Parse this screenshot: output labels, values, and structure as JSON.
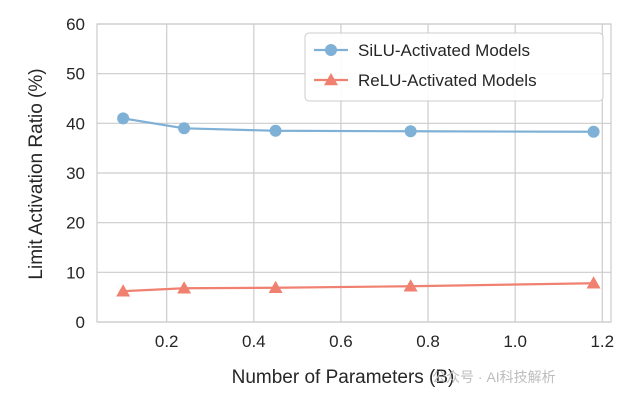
{
  "chart_data": {
    "type": "line",
    "title": "",
    "xlabel": "Number of Parameters (B)",
    "ylabel": "Limit Activation Ratio (%)",
    "xlim": [
      0.04,
      1.22
    ],
    "ylim": [
      0,
      60
    ],
    "xticks": [
      0.2,
      0.4,
      0.6,
      0.8,
      1.0,
      1.2
    ],
    "xtick_labels": [
      "0.2",
      "0.4",
      "0.6",
      "0.8",
      "1.0",
      "1.2"
    ],
    "yticks": [
      0,
      10,
      20,
      30,
      40,
      50,
      60
    ],
    "ytick_labels": [
      "0",
      "10",
      "20",
      "30",
      "40",
      "50",
      "60"
    ],
    "grid": true,
    "legend_position": "top-right",
    "series": [
      {
        "name": "SiLU-Activated Models",
        "color": "#7fb0d5",
        "marker": "circle",
        "x": [
          0.1,
          0.24,
          0.45,
          0.76,
          1.18
        ],
        "y": [
          41.0,
          39.0,
          38.5,
          38.4,
          38.3
        ]
      },
      {
        "name": "ReLU-Activated Models",
        "color": "#f08070",
        "marker": "triangle",
        "x": [
          0.1,
          0.24,
          0.45,
          0.76,
          1.18
        ],
        "y": [
          6.2,
          6.8,
          6.9,
          7.2,
          7.8
        ]
      }
    ],
    "watermark": "公众号 · AI科技解析"
  }
}
